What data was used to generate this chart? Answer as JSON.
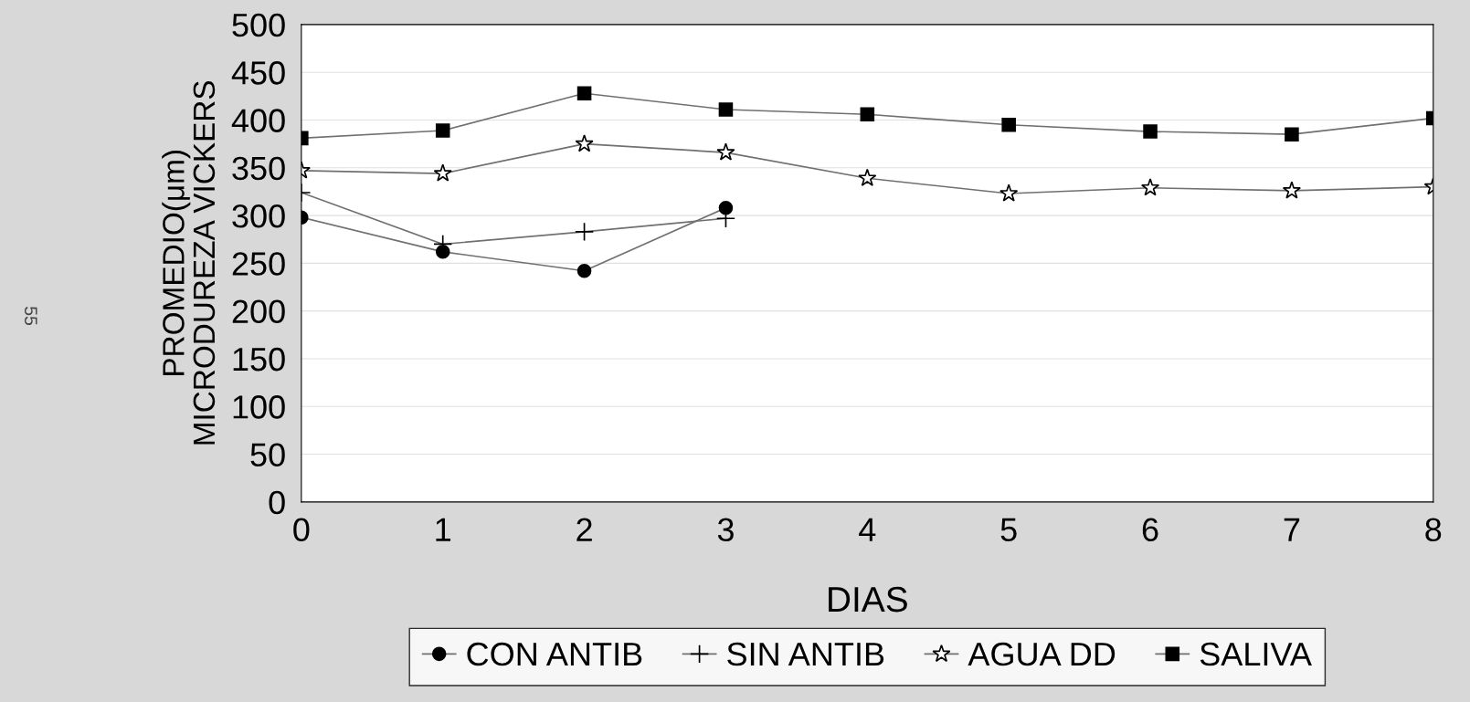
{
  "chart_data": {
    "type": "line",
    "xlabel": "DIAS",
    "ylabel": "PROMEDIO(μm)\nMICRODUREZA VICKERS",
    "x": [
      0,
      1,
      2,
      3,
      4,
      5,
      6,
      7,
      8
    ],
    "series": [
      {
        "name": "CON ANTIB",
        "color": "#000000",
        "marker": "circle",
        "values": [
          298,
          262,
          242,
          308,
          null,
          null,
          null,
          null,
          null
        ]
      },
      {
        "name": "SIN ANTIB",
        "color": "#000000",
        "marker": "cross",
        "values": [
          324,
          270,
          283,
          297,
          null,
          null,
          null,
          null,
          null
        ]
      },
      {
        "name": "AGUA DD",
        "color": "#000000",
        "marker": "star",
        "values": [
          347,
          344,
          375,
          366,
          339,
          323,
          329,
          326,
          330
        ]
      },
      {
        "name": "SALIVA",
        "color": "#000000",
        "marker": "square",
        "values": [
          381,
          389,
          428,
          411,
          406,
          395,
          388,
          385,
          402
        ]
      }
    ],
    "xlim": [
      0,
      8
    ],
    "xticks": [
      0,
      1,
      2,
      3,
      4,
      5,
      6,
      7,
      8
    ],
    "ylim": [
      0,
      500
    ],
    "yticks": [
      0,
      50,
      100,
      150,
      200,
      250,
      300,
      350,
      400,
      450,
      500
    ],
    "grid": "y",
    "legend": "bottom",
    "annotations": [
      "55"
    ]
  }
}
